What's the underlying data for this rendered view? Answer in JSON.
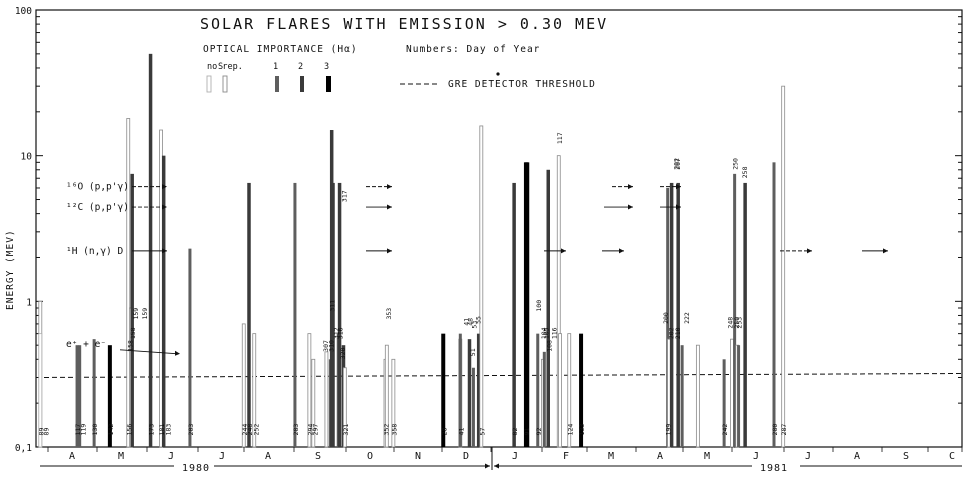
{
  "chart_data": {
    "type": "bar",
    "title": "SOLAR FLARES WITH EMISSION > 0.30 MEV",
    "legend_title": "OPTICAL IMPORTANCE (Hα)",
    "legend_note": "Numbers: Day of Year",
    "legend_categories": [
      "no rep.",
      "S",
      "1",
      "2",
      "3"
    ],
    "threshold_label": "GRE DETECTOR THRESHOLD",
    "threshold_value": 0.3,
    "ylabel": "ENERGY (MEV)",
    "yscale": "log",
    "ylim": [
      0.1,
      100
    ],
    "yticks": [
      {
        "value": 100,
        "label": "100"
      },
      {
        "value": 10,
        "label": "10"
      },
      {
        "value": 1,
        "label": "1"
      },
      {
        "value": 0.1,
        "label": "0,1"
      }
    ],
    "line_labels": [
      {
        "text": "¹⁶O (p,p'γ)",
        "value": 6.13
      },
      {
        "text": "¹²C (p,p'γ)",
        "value": 4.44
      },
      {
        "text": "¹H (n,γ) D",
        "value": 2.22
      },
      {
        "text": "e⁺ + e⁻",
        "value": 0.511
      }
    ],
    "x_months": [
      "A",
      "M",
      "J",
      "J",
      "A",
      "S",
      "O",
      "N",
      "D",
      "J",
      "F",
      "M",
      "A",
      "M",
      "J",
      "J",
      "A",
      "S",
      "C"
    ],
    "years": [
      "1980",
      "1981"
    ],
    "series": [
      {
        "day": 89,
        "year": 1980,
        "importance": "S",
        "energy": 1.0
      },
      {
        "day": 89,
        "year": 1980,
        "importance": "no rep.",
        "energy": 0.6
      },
      {
        "day": 117,
        "year": 1980,
        "importance": "1",
        "energy": 0.5
      },
      {
        "day": 119,
        "year": 1980,
        "importance": "1",
        "energy": 0.5
      },
      {
        "day": 130,
        "year": 1980,
        "importance": "1",
        "energy": 0.55
      },
      {
        "day": 142,
        "year": 1980,
        "importance": "3",
        "energy": 0.5
      },
      {
        "day": 156,
        "year": 1980,
        "importance": "S",
        "energy": 18
      },
      {
        "day": 158,
        "year": 1980,
        "importance": "1",
        "energy": 0.6
      },
      {
        "day": 158,
        "year": 1980,
        "importance": "S",
        "energy": 0.9
      },
      {
        "day": 159,
        "year": 1980,
        "importance": "2",
        "energy": 7.5
      },
      {
        "day": 173,
        "year": 1980,
        "importance": "2",
        "energy": 50
      },
      {
        "day": 181,
        "year": 1980,
        "importance": "S",
        "energy": 15
      },
      {
        "day": 183,
        "year": 1980,
        "importance": "2",
        "energy": 10
      },
      {
        "day": 203,
        "year": 1980,
        "importance": "1",
        "energy": 2.3
      },
      {
        "day": 244,
        "year": 1980,
        "importance": "S",
        "energy": 0.7
      },
      {
        "day": 248,
        "year": 1980,
        "importance": "2",
        "energy": 6.5
      },
      {
        "day": 252,
        "year": 1980,
        "importance": "S",
        "energy": 0.6
      },
      {
        "day": 283,
        "year": 1980,
        "importance": "1",
        "energy": 6.5
      },
      {
        "day": 294,
        "year": 1980,
        "importance": "S",
        "energy": 0.6
      },
      {
        "day": 297,
        "year": 1980,
        "importance": "S",
        "energy": 0.4
      },
      {
        "day": 307,
        "year": 1980,
        "importance": "S",
        "energy": 0.45
      },
      {
        "day": 310,
        "year": 1980,
        "importance": "1",
        "energy": 0.4
      },
      {
        "day": 311,
        "year": 1980,
        "importance": "2",
        "energy": 15
      },
      {
        "day": 312,
        "year": 1980,
        "importance": "2",
        "energy": 6.5
      },
      {
        "day": 316,
        "year": 1980,
        "importance": "1",
        "energy": 0.6
      },
      {
        "day": 317,
        "year": 1980,
        "importance": "2",
        "energy": 6.5
      },
      {
        "day": 320,
        "year": 1980,
        "importance": "2",
        "energy": 0.5
      },
      {
        "day": 321,
        "year": 1980,
        "importance": "S",
        "energy": 0.35
      },
      {
        "day": 352,
        "year": 1980,
        "importance": "S",
        "energy": 0.4
      },
      {
        "day": 353,
        "year": 1980,
        "importance": "S",
        "energy": 0.5
      },
      {
        "day": 358,
        "year": 1980,
        "importance": "S",
        "energy": 0.4
      },
      {
        "day": 28,
        "year": 1981,
        "importance": "3",
        "energy": 0.6
      },
      {
        "day": 41,
        "year": 1981,
        "importance": "S",
        "energy": 0.55
      },
      {
        "day": 41,
        "year": 1981,
        "importance": "1",
        "energy": 0.6
      },
      {
        "day": 48,
        "year": 1981,
        "importance": "2",
        "energy": 0.55
      },
      {
        "day": 51,
        "year": 1981,
        "importance": "1",
        "energy": 0.35
      },
      {
        "day": 55,
        "year": 1981,
        "importance": "2",
        "energy": 0.6
      },
      {
        "day": 57,
        "year": 1981,
        "importance": "S",
        "energy": 16
      },
      {
        "day": 82,
        "year": 1981,
        "importance": "2",
        "energy": 6.5
      },
      {
        "day": 91,
        "year": 1981,
        "importance": "3",
        "energy": 9.0
      },
      {
        "day": 92,
        "year": 1981,
        "importance": "3",
        "energy": 9.0
      },
      {
        "day": 100,
        "year": 1981,
        "importance": "1",
        "energy": 0.6
      },
      {
        "day": 104,
        "year": 1981,
        "importance": "S",
        "energy": 0.4
      },
      {
        "day": 105,
        "year": 1981,
        "importance": "1",
        "energy": 0.45
      },
      {
        "day": 108,
        "year": 1981,
        "importance": "2",
        "energy": 8.0
      },
      {
        "day": 116,
        "year": 1981,
        "importance": "S",
        "energy": 10
      },
      {
        "day": 117,
        "year": 1981,
        "importance": "S",
        "energy": 0.6
      },
      {
        "day": 124,
        "year": 1981,
        "importance": "S",
        "energy": 0.6
      },
      {
        "day": 133,
        "year": 1981,
        "importance": "3",
        "energy": 0.6
      },
      {
        "day": 199,
        "year": 1981,
        "importance": "1",
        "energy": 6.0
      },
      {
        "day": 200,
        "year": 1981,
        "importance": "S",
        "energy": 0.55
      },
      {
        "day": 202,
        "year": 1981,
        "importance": "2",
        "energy": 6.5
      },
      {
        "day": 207,
        "year": 1981,
        "importance": "2",
        "energy": 6.5
      },
      {
        "day": 210,
        "year": 1981,
        "importance": "1",
        "energy": 0.5
      },
      {
        "day": 222,
        "year": 1981,
        "importance": "S",
        "energy": 0.5
      },
      {
        "day": 242,
        "year": 1981,
        "importance": "1",
        "energy": 0.4
      },
      {
        "day": 248,
        "year": 1981,
        "importance": "S",
        "energy": 0.55
      },
      {
        "day": 250,
        "year": 1981,
        "importance": "1",
        "energy": 7.5
      },
      {
        "day": 252,
        "year": 1981,
        "importance": "S",
        "energy": 0.5
      },
      {
        "day": 253,
        "year": 1981,
        "importance": "1",
        "energy": 0.5
      },
      {
        "day": 258,
        "year": 1981,
        "importance": "2",
        "energy": 6.5
      },
      {
        "day": 280,
        "year": 1981,
        "importance": "1",
        "energy": 9.0
      },
      {
        "day": 287,
        "year": 1981,
        "importance": "S",
        "energy": 30
      }
    ],
    "day_labels": [
      {
        "text": "89",
        "day": 89,
        "year": 1980,
        "energy": 0.12
      },
      {
        "text": "89",
        "day": 93,
        "year": 1980,
        "energy": 0.12
      },
      {
        "text": "117",
        "day": 117,
        "year": 1980,
        "energy": 0.12
      },
      {
        "text": "119",
        "day": 121,
        "year": 1980,
        "energy": 0.12
      },
      {
        "text": "130",
        "day": 130,
        "year": 1980,
        "energy": 0.12
      },
      {
        "text": "142",
        "day": 142,
        "year": 1980,
        "energy": 0.12
      },
      {
        "text": "156",
        "day": 156,
        "year": 1980,
        "energy": 0.12
      },
      {
        "text": "173",
        "day": 173,
        "year": 1980,
        "energy": 0.12
      },
      {
        "text": "181",
        "day": 181,
        "year": 1980,
        "energy": 0.12
      },
      {
        "text": "183",
        "day": 186,
        "year": 1980,
        "energy": 0.12
      },
      {
        "text": "203",
        "day": 203,
        "year": 1980,
        "energy": 0.12
      },
      {
        "text": "244",
        "day": 244,
        "year": 1980,
        "energy": 0.12
      },
      {
        "text": "248",
        "day": 248,
        "year": 1980,
        "energy": 0.12
      },
      {
        "text": "252",
        "day": 253,
        "year": 1980,
        "energy": 0.12
      },
      {
        "text": "283",
        "day": 283,
        "year": 1980,
        "energy": 0.12
      },
      {
        "text": "294",
        "day": 294,
        "year": 1980,
        "energy": 0.12
      },
      {
        "text": "297",
        "day": 298,
        "year": 1980,
        "energy": 0.12
      },
      {
        "text": "321",
        "day": 321,
        "year": 1980,
        "energy": 0.12
      },
      {
        "text": "352",
        "day": 352,
        "year": 1980,
        "energy": 0.12
      },
      {
        "text": "358",
        "day": 358,
        "year": 1980,
        "energy": 0.12
      },
      {
        "text": "28",
        "day": 28,
        "year": 1981,
        "energy": 0.12
      },
      {
        "text": "41",
        "day": 41,
        "year": 1981,
        "energy": 0.12
      },
      {
        "text": "57",
        "day": 57,
        "year": 1981,
        "energy": 0.12
      },
      {
        "text": "82",
        "day": 82,
        "year": 1981,
        "energy": 0.12
      },
      {
        "text": "91",
        "day": 91,
        "year": 1981,
        "energy": 0.12
      },
      {
        "text": "92",
        "day": 100,
        "year": 1981,
        "energy": 0.12
      },
      {
        "text": "124",
        "day": 124,
        "year": 1981,
        "energy": 0.12
      },
      {
        "text": "133",
        "day": 133,
        "year": 1981,
        "energy": 0.12
      },
      {
        "text": "199",
        "day": 199,
        "year": 1981,
        "energy": 0.12
      },
      {
        "text": "242",
        "day": 242,
        "year": 1981,
        "energy": 0.12
      },
      {
        "text": "280",
        "day": 280,
        "year": 1981,
        "energy": 0.12
      },
      {
        "text": "287",
        "day": 287,
        "year": 1981,
        "energy": 0.12
      },
      {
        "text": "158",
        "day": 157,
        "year": 1980,
        "energy": 0.45
      },
      {
        "text": "158",
        "day": 159,
        "year": 1980,
        "energy": 0.55
      },
      {
        "text": "159",
        "day": 161,
        "year": 1980,
        "energy": 0.75
      },
      {
        "text": "159",
        "day": 168,
        "year": 1980,
        "energy": 0.75
      },
      {
        "text": "307",
        "day": 306,
        "year": 1980,
        "energy": 0.45
      },
      {
        "text": "310",
        "day": 310,
        "year": 1980,
        "energy": 0.45
      },
      {
        "text": "311",
        "day": 311,
        "year": 1980,
        "energy": 0.85
      },
      {
        "text": "312",
        "day": 314,
        "year": 1980,
        "energy": 0.55
      },
      {
        "text": "316",
        "day": 317,
        "year": 1980,
        "energy": 0.55
      },
      {
        "text": "320",
        "day": 319,
        "year": 1980,
        "energy": 0.4
      },
      {
        "text": "317",
        "day": 320,
        "year": 1980,
        "energy": 4.8
      },
      {
        "text": "353",
        "day": 354,
        "year": 1980,
        "energy": 0.75
      },
      {
        "text": "41",
        "day": 45,
        "year": 1981,
        "energy": 0.68
      },
      {
        "text": "48",
        "day": 48,
        "year": 1981,
        "energy": 0.68
      },
      {
        "text": "51",
        "day": 50,
        "year": 1981,
        "energy": 0.42
      },
      {
        "text": "53",
        "day": 51,
        "year": 1981,
        "energy": 0.65
      },
      {
        "text": "55",
        "day": 54,
        "year": 1981,
        "energy": 0.7
      },
      {
        "text": "100",
        "day": 100,
        "year": 1981,
        "energy": 0.85
      },
      {
        "text": "104",
        "day": 104,
        "year": 1981,
        "energy": 0.55
      },
      {
        "text": "105",
        "day": 106,
        "year": 1981,
        "energy": 0.55
      },
      {
        "text": "108",
        "day": 108,
        "year": 1981,
        "energy": 0.45
      },
      {
        "text": "116",
        "day": 112,
        "year": 1981,
        "energy": 0.55
      },
      {
        "text": "117",
        "day": 116,
        "year": 1981,
        "energy": 12
      },
      {
        "text": "200",
        "day": 197,
        "year": 1981,
        "energy": 0.7
      },
      {
        "text": "202",
        "day": 201,
        "year": 1981,
        "energy": 0.55
      },
      {
        "text": "210",
        "day": 206,
        "year": 1981,
        "energy": 0.55
      },
      {
        "text": "222",
        "day": 213,
        "year": 1981,
        "energy": 0.7
      },
      {
        "text": "202",
        "day": 205,
        "year": 1981,
        "energy": 8.0
      },
      {
        "text": "207",
        "day": 206,
        "year": 1981,
        "energy": 8.0
      },
      {
        "text": "248",
        "day": 246,
        "year": 1981,
        "energy": 0.65
      },
      {
        "text": "250",
        "day": 250,
        "year": 1981,
        "energy": 8.0
      },
      {
        "text": "250",
        "day": 251,
        "year": 1981,
        "energy": 0.65
      },
      {
        "text": "253",
        "day": 253,
        "year": 1981,
        "energy": 0.65
      },
      {
        "text": "258",
        "day": 257,
        "year": 1981,
        "energy": 7.0
      }
    ]
  },
  "colors": {
    "no rep.": "#b0b0b0",
    "S": "#8a8a8a",
    "1": "#5e5e5e",
    "2": "#3a3a3a",
    "3": "#000000",
    "ink": "#111111"
  }
}
